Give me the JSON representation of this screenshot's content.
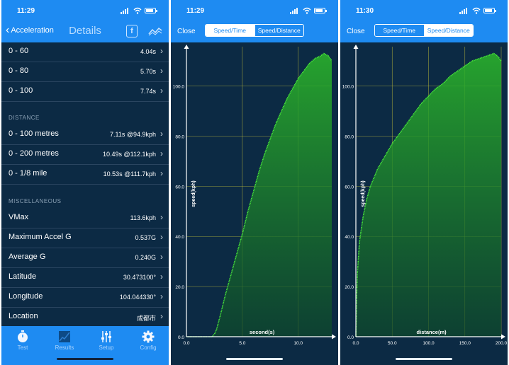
{
  "colors": {
    "accent": "#1e8bf2",
    "panel_bg": "#0c2a44",
    "curve": "#49e83a",
    "grid": "#c9c43a"
  },
  "details": {
    "status_time": "11:29",
    "back_label": "Acceleration",
    "title": "Details",
    "rows_top": [
      {
        "label": "0 - 60",
        "value": "4.04s"
      },
      {
        "label": "0 - 80",
        "value": "5.70s"
      },
      {
        "label": "0 - 100",
        "value": "7.74s"
      }
    ],
    "distance_header": "DISTANCE",
    "rows_distance": [
      {
        "label": "0 - 100 metres",
        "value": "7.11s @94.9kph"
      },
      {
        "label": "0 - 200 metres",
        "value": "10.49s @112.1kph"
      },
      {
        "label": "0 - 1/8 mile",
        "value": "10.53s @111.7kph"
      }
    ],
    "misc_header": "MISCELLANEOUS",
    "rows_misc": [
      {
        "label": "VMax",
        "value": "113.6kph"
      },
      {
        "label": "Maximum Accel G",
        "value": "0.537G"
      },
      {
        "label": "Average G",
        "value": "0.240G"
      },
      {
        "label": "Latitude",
        "value": "30.473100°"
      },
      {
        "label": "Longitude",
        "value": "104.044330°"
      },
      {
        "label": "Location",
        "value": "成都市"
      }
    ],
    "tabs": [
      {
        "label": "Test",
        "icon": "stopwatch-icon"
      },
      {
        "label": "Results",
        "icon": "graph-icon"
      },
      {
        "label": "Setup",
        "icon": "sliders-icon"
      },
      {
        "label": "Config",
        "icon": "gear-icon"
      }
    ]
  },
  "speed_time": {
    "status_time": "11:29",
    "close_label": "Close",
    "seg_left": "Speed/Time",
    "seg_right": "Speed/Distance",
    "active": "Speed/Time"
  },
  "speed_distance": {
    "status_time": "11:30",
    "close_label": "Close",
    "seg_left": "Speed/Time",
    "seg_right": "Speed/Distance",
    "active": "Speed/Distance"
  },
  "chart_data": [
    {
      "type": "area",
      "xlabel": "second(s)",
      "ylabel": "speed(kph)",
      "xlim": [
        0,
        13
      ],
      "ylim": [
        0,
        114
      ],
      "x_ticks": [
        "0.0",
        "5.0",
        "10.0"
      ],
      "y_ticks": [
        "0.0",
        "20.0",
        "40.0",
        "60.0",
        "80.0",
        "100.0"
      ],
      "grid": true,
      "x": [
        0,
        2,
        2.3,
        2.5,
        2.7,
        3,
        3.5,
        4,
        4.5,
        5,
        5.5,
        6,
        6.5,
        7,
        7.5,
        8,
        8.5,
        9,
        9.5,
        10,
        10.5,
        11,
        11.5,
        12,
        12.3,
        12.7,
        13
      ],
      "y": [
        0,
        0,
        0,
        1,
        3,
        8,
        17,
        25,
        33,
        41,
        50,
        58,
        66,
        73,
        79,
        85,
        90,
        95,
        99,
        103,
        106,
        109,
        111,
        112,
        113,
        112,
        110
      ]
    },
    {
      "type": "area",
      "xlabel": "distance(m)",
      "ylabel": "speed(kph)",
      "xlim": [
        0,
        200
      ],
      "ylim": [
        0,
        114
      ],
      "x_ticks": [
        "0.0",
        "50.0",
        "100.0",
        "150.0",
        "200.0"
      ],
      "y_ticks": [
        "0.0",
        "20.0",
        "40.0",
        "60.0",
        "80.0",
        "100.0"
      ],
      "grid": true,
      "x": [
        0,
        1,
        2,
        5,
        10,
        15,
        20,
        30,
        40,
        50,
        60,
        70,
        80,
        90,
        100,
        110,
        120,
        130,
        140,
        150,
        160,
        170,
        180,
        190,
        195,
        200
      ],
      "y": [
        0,
        15,
        25,
        38,
        48,
        55,
        60,
        67,
        72,
        77,
        81,
        85,
        89,
        93,
        96,
        99,
        101,
        104,
        106,
        108,
        110,
        111,
        112,
        113,
        112,
        110
      ]
    }
  ]
}
